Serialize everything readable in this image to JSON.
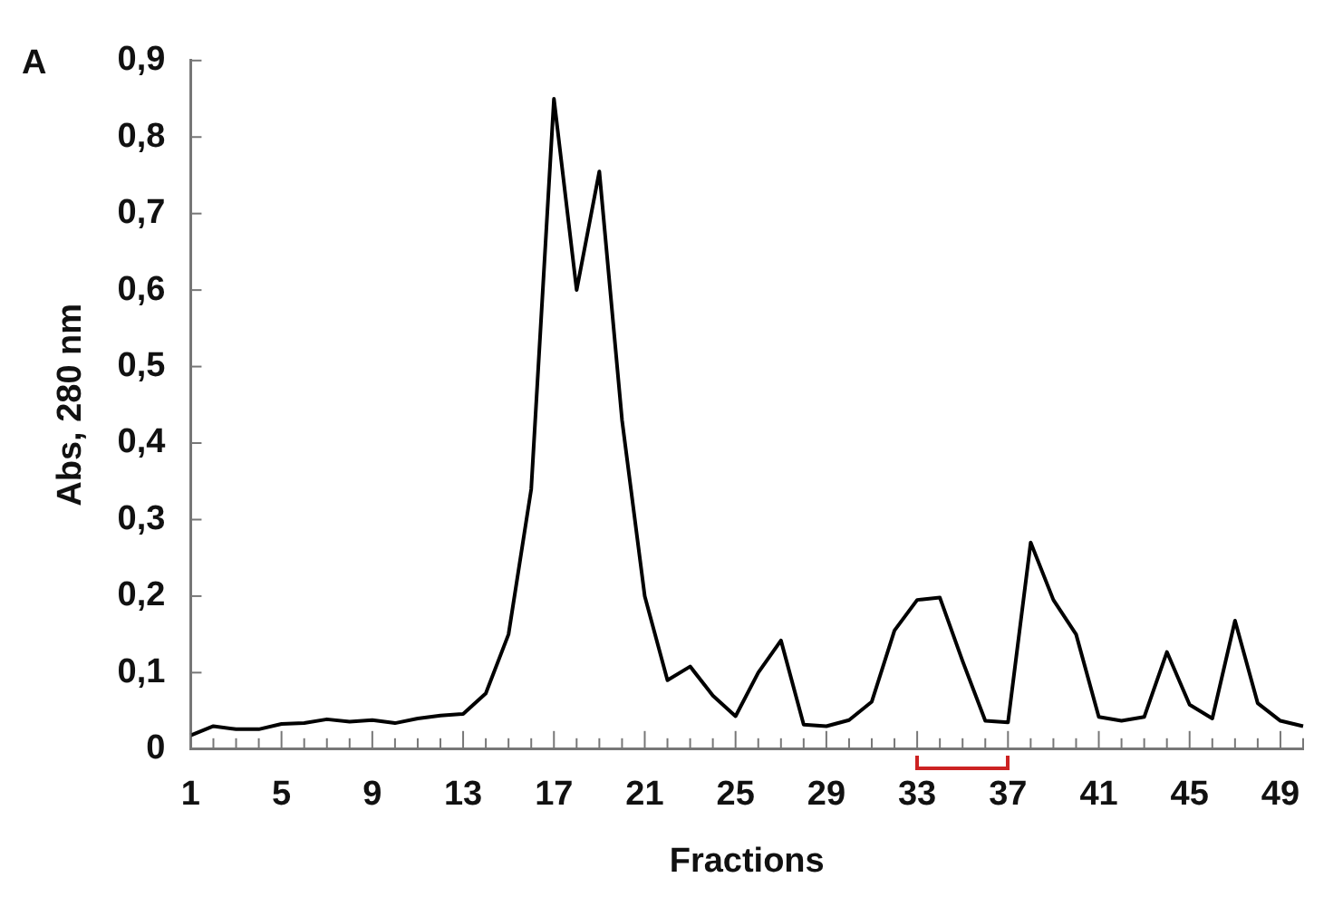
{
  "chart_data": {
    "type": "line",
    "xlabel": "Fractions",
    "ylabel": "Abs, 280 nm",
    "annotations": [
      "A"
    ],
    "categories": [
      "1",
      null,
      null,
      null,
      "5",
      null,
      null,
      null,
      "9",
      null,
      null,
      null,
      "13",
      null,
      null,
      null,
      "17",
      null,
      null,
      null,
      "21",
      null,
      null,
      null,
      "25",
      null,
      null,
      null,
      "29",
      null,
      null,
      null,
      "33",
      null,
      null,
      null,
      "37",
      null,
      null,
      null,
      "41",
      null,
      null,
      null,
      "45",
      null,
      null,
      null,
      "49",
      null
    ],
    "series": [
      {
        "color": "#000000",
        "values": [
          0.018,
          0.03,
          0.026,
          0.026,
          0.033,
          0.034,
          0.039,
          0.036,
          0.038,
          0.034,
          0.04,
          0.044,
          0.046,
          0.073,
          0.15,
          0.34,
          0.85,
          0.6,
          0.755,
          0.43,
          0.2,
          0.09,
          0.108,
          0.07,
          0.043,
          0.1,
          0.142,
          0.032,
          0.03,
          0.038,
          0.062,
          0.155,
          0.195,
          0.198,
          0.115,
          0.037,
          0.035,
          0.27,
          0.195,
          0.15,
          0.042,
          0.037,
          0.042,
          0.127,
          0.058,
          0.04,
          0.168,
          0.06,
          0.037,
          0.03
        ]
      }
    ],
    "ylim": [
      0,
      0.9
    ],
    "yticks": [
      0,
      {
        "value": 0.1,
        "label": "0,1"
      },
      {
        "value": 0.2,
        "label": "0,2"
      },
      {
        "value": 0.3,
        "label": "0,3"
      },
      {
        "value": 0.4,
        "label": "0,4"
      },
      {
        "value": 0.5,
        "label": "0,5"
      },
      {
        "value": 0.6,
        "label": "0,6"
      },
      {
        "value": 0.7,
        "label": "0,7"
      },
      {
        "value": 0.8,
        "label": "0,8"
      },
      {
        "value": 0.9,
        "label": "0,9"
      }
    ],
    "grid": false,
    "legend": false,
    "marker": "none",
    "line_style": "solid"
  }
}
